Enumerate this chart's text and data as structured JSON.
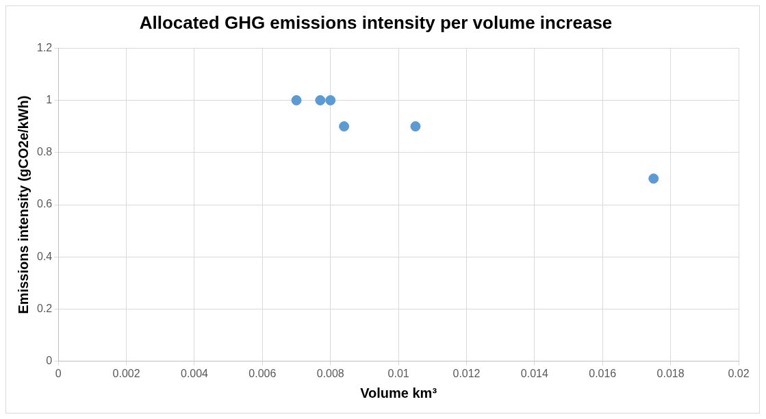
{
  "chart_data": {
    "type": "scatter",
    "title": "Allocated GHG emissions intensity per volume increase",
    "xlabel": "Volume km³",
    "ylabel": "Emissions intensity (gCO2e/kWh)",
    "x": [
      0.007,
      0.0077,
      0.008,
      0.0084,
      0.0105,
      0.0175
    ],
    "series": [
      {
        "color": "#5b9bd5",
        "values": [
          1,
          1,
          1,
          0.9,
          0.9,
          0.7
        ]
      }
    ],
    "xlim": [
      0,
      0.02
    ],
    "xticks": [
      0,
      0.002,
      0.004,
      0.006,
      0.008,
      0.01,
      0.012,
      0.014,
      0.016,
      0.018,
      0.02
    ],
    "ylim": [
      0,
      1.2
    ],
    "yticks": [
      0,
      0.2,
      0.4,
      0.6,
      0.8,
      1,
      1.2
    ],
    "grid": true,
    "legend": false,
    "marker": "circle"
  }
}
